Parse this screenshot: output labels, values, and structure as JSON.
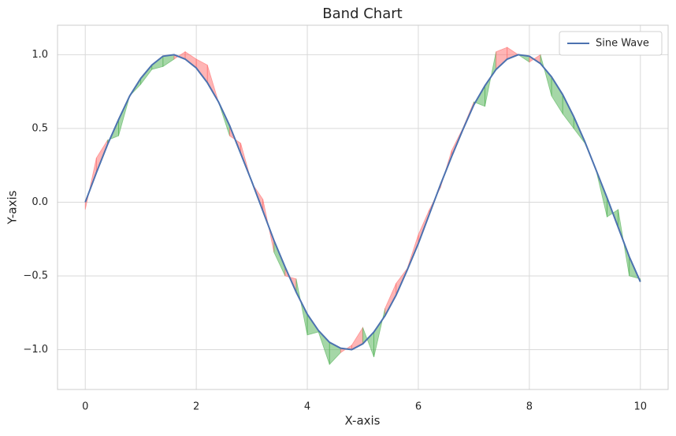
{
  "chart_data": {
    "type": "band",
    "title": "Band Chart",
    "x_label": "X-axis",
    "y_label": "Y-axis",
    "x": [
      0,
      0.2,
      0.4,
      0.6,
      0.8,
      1.0,
      1.2,
      1.4,
      1.6,
      1.8,
      2.0,
      2.2,
      2.4,
      2.6,
      2.8,
      3.0,
      3.2,
      3.4,
      3.6,
      3.8,
      4.0,
      4.2,
      4.4,
      4.6,
      4.8,
      5.0,
      5.2,
      5.4,
      5.6,
      5.8,
      6.0,
      6.2,
      6.4,
      6.6,
      6.8,
      7.0,
      7.2,
      7.4,
      7.6,
      7.8,
      8.0,
      8.2,
      8.4,
      8.6,
      8.8,
      9.0,
      9.2,
      9.4,
      9.6,
      9.8,
      10.0
    ],
    "series": [
      {
        "name": "Sine Wave",
        "color": "#4c72b0",
        "values": [
          0,
          0.2,
          0.39,
          0.56,
          0.72,
          0.84,
          0.93,
          0.99,
          1.0,
          0.97,
          0.91,
          0.81,
          0.68,
          0.52,
          0.33,
          0.14,
          -0.06,
          -0.26,
          -0.44,
          -0.61,
          -0.76,
          -0.87,
          -0.95,
          -0.99,
          -1.0,
          -0.96,
          -0.88,
          -0.77,
          -0.63,
          -0.46,
          -0.28,
          -0.08,
          0.12,
          0.31,
          0.49,
          0.66,
          0.79,
          0.9,
          0.97,
          1.0,
          0.99,
          0.94,
          0.85,
          0.73,
          0.58,
          0.41,
          0.22,
          0.03,
          -0.17,
          -0.37,
          -0.54
        ]
      }
    ],
    "band": {
      "above_color": "#ff6b6b",
      "below_color": "#4caf50",
      "values": [
        -0.05,
        0.3,
        0.42,
        0.45,
        0.72,
        0.8,
        0.9,
        0.92,
        0.97,
        1.02,
        0.97,
        0.93,
        0.68,
        0.45,
        0.4,
        0.13,
        0.02,
        -0.34,
        -0.5,
        -0.52,
        -0.9,
        -0.88,
        -1.1,
        -1.02,
        -0.97,
        -0.85,
        -1.05,
        -0.72,
        -0.55,
        -0.45,
        -0.22,
        -0.05,
        0.1,
        0.35,
        0.5,
        0.68,
        0.65,
        1.02,
        1.05,
        1.0,
        0.95,
        1.0,
        0.72,
        0.6,
        0.5,
        0.4,
        0.22,
        -0.1,
        -0.05,
        -0.5,
        -0.52
      ]
    },
    "xlim": [
      -0.5,
      10.5
    ],
    "ylim": [
      -1.27,
      1.2
    ],
    "xticks": [
      0,
      2,
      4,
      6,
      8,
      10
    ],
    "yticks": [
      {
        "value": -1.0,
        "label": "−1.0"
      },
      {
        "value": -0.5,
        "label": "−0.5"
      },
      {
        "value": 0.0,
        "label": "0.0"
      },
      {
        "value": 0.5,
        "label": "0.5"
      },
      {
        "value": 1.0,
        "label": "1.0"
      }
    ],
    "grid": true,
    "legend": "upper right"
  }
}
